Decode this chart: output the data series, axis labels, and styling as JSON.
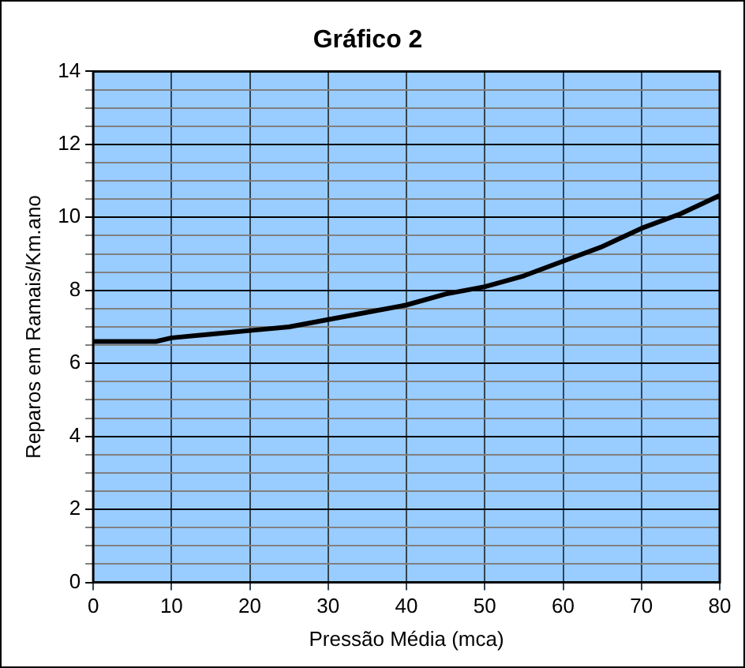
{
  "chart_data": {
    "type": "line",
    "title": "Gráfico 2",
    "xlabel": "Pressão Média (mca)",
    "ylabel": "Reparos em Ramais/Km.ano",
    "x": [
      0,
      5,
      8,
      10,
      15,
      20,
      25,
      30,
      35,
      40,
      45,
      50,
      55,
      60,
      65,
      70,
      75,
      80
    ],
    "series": [
      {
        "color": "#000000",
        "values": [
          6.6,
          6.6,
          6.6,
          6.7,
          6.8,
          6.9,
          7.0,
          7.2,
          7.4,
          7.6,
          7.9,
          8.1,
          8.4,
          8.8,
          9.2,
          9.7,
          10.1,
          10.6
        ]
      }
    ],
    "xlim": [
      0,
      80
    ],
    "xticks": [
      0,
      10,
      20,
      30,
      40,
      50,
      60,
      70,
      80
    ],
    "ylim": [
      0,
      14
    ],
    "yticks": [
      0,
      {
        "value": 0.5,
        "label": null
      },
      {
        "value": 1,
        "label": null
      },
      {
        "value": 1.5,
        "label": null
      },
      2,
      {
        "value": 2.5,
        "label": null
      },
      {
        "value": 3,
        "label": null
      },
      {
        "value": 3.5,
        "label": null
      },
      4,
      {
        "value": 4.5,
        "label": null
      },
      {
        "value": 5,
        "label": null
      },
      {
        "value": 5.5,
        "label": null
      },
      6,
      {
        "value": 6.5,
        "label": null
      },
      {
        "value": 7,
        "label": null
      },
      {
        "value": 7.5,
        "label": null
      },
      8,
      {
        "value": 8.5,
        "label": null
      },
      {
        "value": 9,
        "label": null
      },
      {
        "value": 9.5,
        "label": null
      },
      10,
      {
        "value": 10.5,
        "label": null
      },
      {
        "value": 11,
        "label": null
      },
      {
        "value": 11.5,
        "label": null
      },
      12,
      {
        "value": 12.5,
        "label": null
      },
      {
        "value": 13,
        "label": null
      },
      {
        "value": 13.5,
        "label": null
      },
      14
    ],
    "grid": true,
    "legend": false,
    "marker": "none",
    "line_style": "solid"
  }
}
